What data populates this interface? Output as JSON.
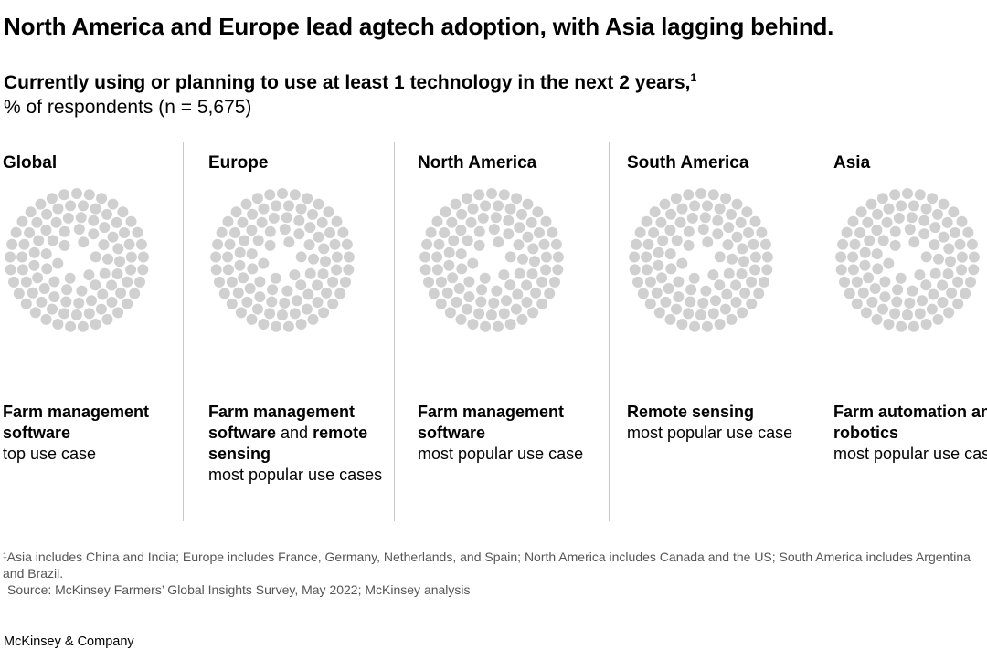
{
  "title": "North America and Europe lead agtech adoption, with Asia lagging behind.",
  "subtitle": "Currently using or planning to use at least 1 technology in the next 2 years,",
  "subtitle_footnote_marker": "1",
  "unit": "% of respondents (n = 5,675)",
  "colors": {
    "dot": "#d0d0d0",
    "divider": "#c8c8c8"
  },
  "chart_data": {
    "type": "dot-matrix",
    "categories": [
      "Global",
      "Europe",
      "North America",
      "South America",
      "Asia"
    ],
    "dots_per_region": 100,
    "note": "Each region shown as a disc of 100 light-gray dots"
  },
  "panels": [
    {
      "name": "Global",
      "usecase_parts": [
        {
          "text": "Farm management software",
          "bold": true
        },
        {
          "text": "top use case",
          "bold": false,
          "newline": true
        }
      ]
    },
    {
      "name": "Europe",
      "usecase_parts": [
        {
          "text": "Farm management software",
          "bold": true
        },
        {
          "text": " and ",
          "bold": false
        },
        {
          "text": "remote sensing",
          "bold": true
        },
        {
          "text": "most popular use cases",
          "bold": false,
          "newline": true
        }
      ]
    },
    {
      "name": "North America",
      "usecase_parts": [
        {
          "text": "Farm management software",
          "bold": true
        },
        {
          "text": "most popular use case",
          "bold": false,
          "newline": true
        }
      ]
    },
    {
      "name": "South America",
      "usecase_parts": [
        {
          "text": "Remote sensing",
          "bold": true
        },
        {
          "text": "most popular use case",
          "bold": false,
          "newline": true
        }
      ]
    },
    {
      "name": "Asia",
      "usecase_parts": [
        {
          "text": "Farm automation and robotics",
          "bold": true
        },
        {
          "text": "most popular use case",
          "bold": false,
          "newline": true
        }
      ]
    }
  ],
  "footnote": "¹Asia includes China and India; Europe includes France, Germany, Netherlands, and Spain; North America includes Canada and the US; South America includes Argentina and Brazil.",
  "source": "Source: McKinsey Farmers’ Global Insights Survey, May 2022; McKinsey analysis",
  "brand": "McKinsey & Company"
}
